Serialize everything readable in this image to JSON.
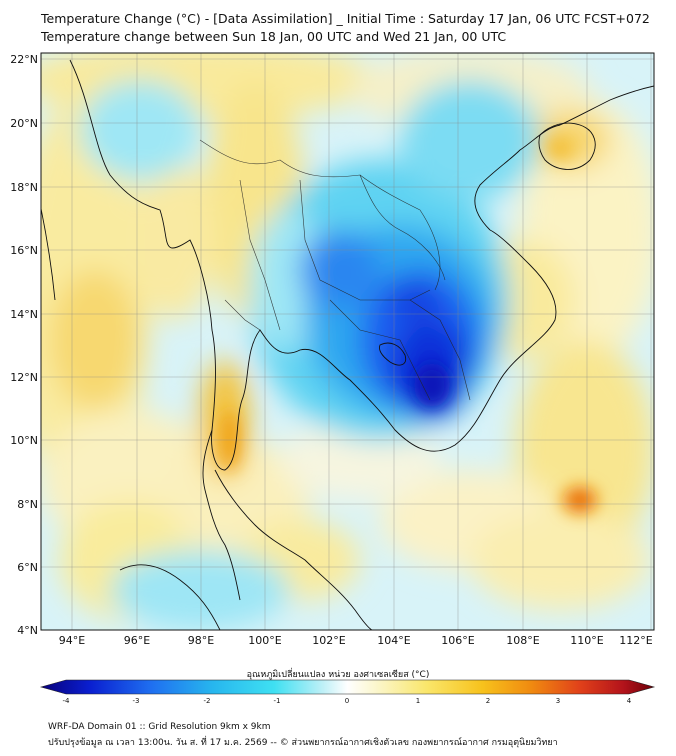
{
  "header": {
    "title_line1": "Temperature Change (°C) - [Data Assimilation] _ Initial Time : Saturday 17 Jan, 06 UTC FCST+072",
    "title_line2": "Temperature change between Sun 18 Jan, 00 UTC and Wed 21 Jan, 00 UTC"
  },
  "map": {
    "lat_labels": [
      "22°N",
      "20°N",
      "18°N",
      "16°N",
      "14°N",
      "12°N",
      "10°N",
      "8°N",
      "6°N",
      "4°N"
    ],
    "lon_labels": [
      "94°E",
      "96°E",
      "98°E",
      "100°E",
      "102°E",
      "104°E",
      "106°E",
      "108°E",
      "110°E",
      "112°E"
    ],
    "background_color": "#bfeef9"
  },
  "colorbar": {
    "title": "อุณหภูมิเปลี่ยนแปลง หน่วย องศาเซลเซียส (°C)",
    "tick_labels": [
      "-4",
      "-3",
      "-2",
      "-1",
      "0",
      "1",
      "2",
      "3",
      "4"
    ],
    "stops": [
      "#08007a",
      "#0a1fd0",
      "#1f6ff0",
      "#27b6ee",
      "#3fe0f2",
      "#bff0f7",
      "#ffffff",
      "#fbf6c9",
      "#fae66a",
      "#f7c21c",
      "#f08a10",
      "#e0401a",
      "#b3131b",
      "#6b0008"
    ]
  },
  "footer": {
    "line1": "WRF-DA Domain 01 :: Grid Resolution 9km x 9km",
    "line2": "ปรับปรุงข้อมูล ณ เวลา 13:00น. วัน ส. ที่ 17 ม.ค. 2569 -- © ส่วนพยากรณ์อากาศเชิงตัวเลข กองพยากรณ์อากาศ กรมอุตุนิยมวิทยา"
  }
}
